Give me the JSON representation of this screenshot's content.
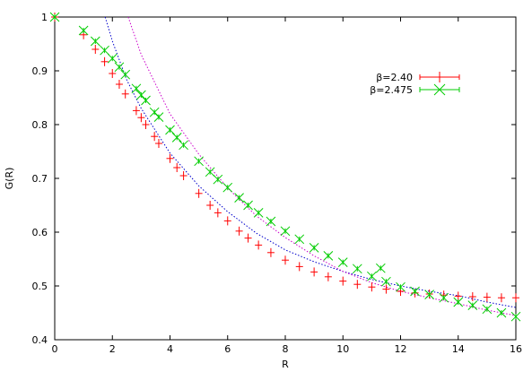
{
  "chart_data": {
    "type": "scatter",
    "xlabel": "R",
    "ylabel": "G(R)",
    "xlim": [
      0,
      16
    ],
    "ylim": [
      0.4,
      1.0
    ],
    "x_ticks": [
      "0",
      "2",
      "4",
      "6",
      "8",
      "10",
      "12",
      "14",
      "16"
    ],
    "y_ticks": [
      "0.4",
      "0.5",
      "0.6",
      "0.7",
      "0.8",
      "0.9",
      "1"
    ],
    "grid": false,
    "legend_position": "top-right",
    "series": [
      {
        "name": "β=2.40",
        "marker": "plus-errorbar",
        "color": "#ff0000",
        "x": [
          0,
          1.0,
          1.41,
          1.73,
          2.0,
          2.24,
          2.45,
          2.83,
          3.0,
          3.16,
          3.46,
          3.61,
          4.0,
          4.24,
          4.47,
          5.0,
          5.39,
          5.66,
          6.0,
          6.4,
          6.71,
          7.07,
          7.5,
          8.0,
          8.49,
          9.0,
          9.49,
          10.0,
          10.5,
          11.0,
          11.5,
          12.0,
          12.5,
          13.0,
          13.5,
          14.0,
          14.5,
          15.0,
          15.5,
          16.0
        ],
        "y": [
          1.0,
          0.967,
          0.94,
          0.917,
          0.895,
          0.875,
          0.857,
          0.826,
          0.813,
          0.8,
          0.778,
          0.765,
          0.737,
          0.72,
          0.705,
          0.672,
          0.65,
          0.636,
          0.621,
          0.602,
          0.589,
          0.576,
          0.562,
          0.548,
          0.536,
          0.526,
          0.517,
          0.509,
          0.503,
          0.498,
          0.494,
          0.49,
          0.487,
          0.485,
          0.483,
          0.481,
          0.48,
          0.479,
          0.478,
          0.478
        ]
      },
      {
        "name": "β=2.475",
        "marker": "x-errorbar",
        "color": "#00cc00",
        "x": [
          0,
          1.0,
          1.41,
          1.73,
          2.0,
          2.24,
          2.45,
          2.83,
          3.0,
          3.16,
          3.46,
          3.61,
          4.0,
          4.24,
          4.47,
          5.0,
          5.39,
          5.66,
          6.0,
          6.4,
          6.71,
          7.07,
          7.5,
          8.0,
          8.49,
          9.0,
          9.49,
          10.0,
          10.5,
          11.0,
          11.31,
          11.5,
          12.0,
          12.5,
          13.0,
          13.5,
          14.0,
          14.5,
          15.0,
          15.5,
          16.0
        ],
        "y": [
          1.0,
          0.975,
          0.955,
          0.938,
          0.923,
          0.907,
          0.893,
          0.867,
          0.855,
          0.845,
          0.823,
          0.814,
          0.79,
          0.776,
          0.762,
          0.732,
          0.712,
          0.698,
          0.683,
          0.664,
          0.65,
          0.636,
          0.62,
          0.602,
          0.587,
          0.571,
          0.556,
          0.544,
          0.532,
          0.518,
          0.533,
          0.508,
          0.498,
          0.49,
          0.484,
          0.478,
          0.47,
          0.464,
          0.457,
          0.45,
          0.443
        ]
      }
    ],
    "fit_curves": [
      {
        "color": "#0000cc",
        "style": "dotted",
        "x": [
          1.75,
          2.0,
          2.5,
          3.0,
          4.0,
          5.0,
          6.0,
          7.0,
          8.0,
          9.0,
          10.0,
          11.0,
          12.0,
          13.0,
          14.0,
          15.0,
          16.0
        ],
        "y": [
          1.0,
          0.955,
          0.883,
          0.83,
          0.747,
          0.686,
          0.638,
          0.598,
          0.567,
          0.545,
          0.527,
          0.512,
          0.5,
          0.49,
          0.482,
          0.47,
          0.46
        ]
      },
      {
        "color": "#cc00cc",
        "style": "dotted",
        "x": [
          2.55,
          3.0,
          4.0,
          5.0,
          6.0,
          7.0,
          8.0,
          9.0,
          10.0,
          11.0,
          12.0,
          13.0,
          14.0,
          15.0,
          16.0
        ],
        "y": [
          1.0,
          0.93,
          0.82,
          0.745,
          0.682,
          0.63,
          0.59,
          0.556,
          0.527,
          0.506,
          0.49,
          0.478,
          0.467,
          0.455,
          0.445
        ]
      }
    ]
  }
}
